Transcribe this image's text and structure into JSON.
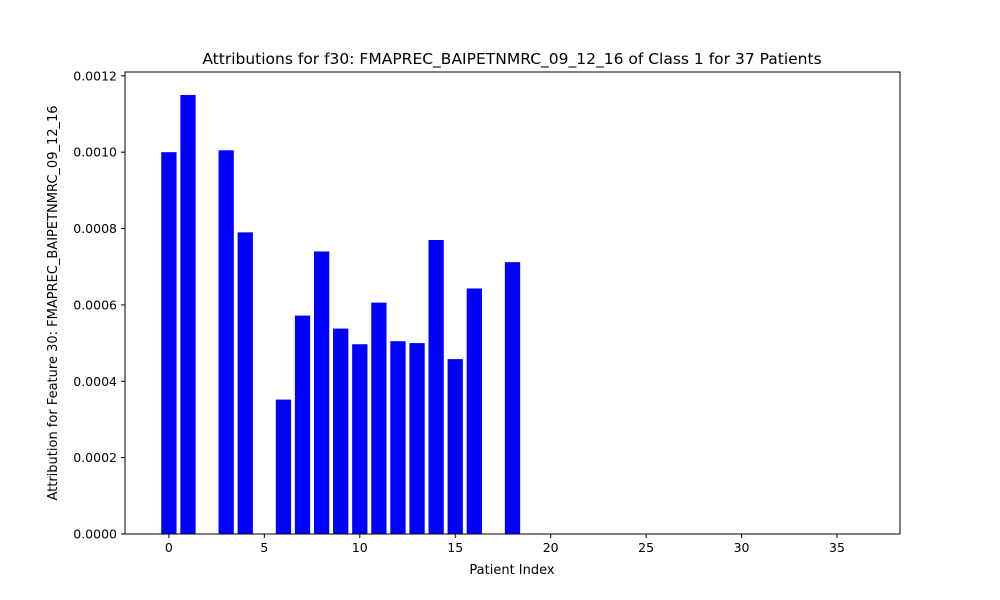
{
  "chart_data": {
    "type": "bar",
    "title": "Attributions for f30: FMAPREC_BAIPETNMRC_09_12_16 of Class 1 for 37 Patients",
    "xlabel": "Patient Index",
    "ylabel": "Attribution for Feature 30: FMAPREC_BAIPETNMRC_09_12_16",
    "x": [
      0,
      1,
      2,
      3,
      4,
      5,
      6,
      7,
      8,
      9,
      10,
      11,
      12,
      13,
      14,
      15,
      16,
      17,
      18,
      19,
      20,
      21,
      22,
      23,
      24,
      25,
      26,
      27,
      28,
      29,
      30,
      31,
      32,
      33,
      34,
      35,
      36
    ],
    "values": [
      0.001,
      0.00115,
      0.0,
      0.001005,
      0.00079,
      0.0,
      0.000352,
      0.000572,
      0.00074,
      0.000538,
      0.000497,
      0.000606,
      0.000505,
      0.0005,
      0.00077,
      0.000458,
      0.000643,
      0.0,
      0.000712,
      0.0,
      0.0,
      0.0,
      0.0,
      0.0,
      0.0,
      0.0,
      0.0,
      0.0,
      0.0,
      0.0,
      0.0,
      0.0,
      0.0,
      0.0,
      0.0,
      0.0,
      0.0
    ],
    "xlim": [
      -2.3,
      38.3
    ],
    "ylim": [
      0,
      0.00121
    ],
    "xticks": [
      0,
      5,
      10,
      15,
      20,
      25,
      30,
      35
    ],
    "xtick_labels": [
      "0",
      "5",
      "10",
      "15",
      "20",
      "25",
      "30",
      "35"
    ],
    "yticks": [
      0,
      0.0002,
      0.0004,
      0.0006,
      0.0008,
      0.001,
      0.0012
    ],
    "ytick_labels": [
      "0.0000",
      "0.0002",
      "0.0004",
      "0.0006",
      "0.0008",
      "0.0010",
      "0.0012"
    ],
    "bar_color": "#0000ff",
    "grid": false,
    "legend": "none"
  }
}
